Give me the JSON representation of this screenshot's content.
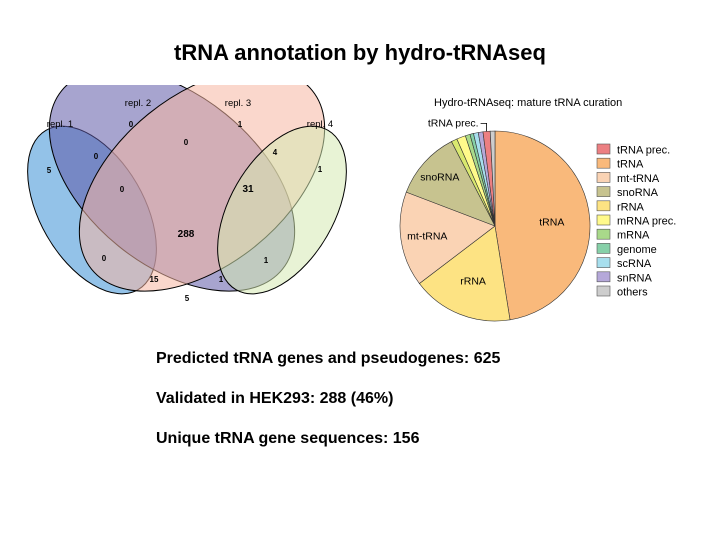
{
  "slide": {
    "title": "tRNA annotation by hydro-tRNAseq",
    "stats": [
      "Predicted tRNA genes and pseudogenes: 625",
      "Validated in HEK293: 288 (46%)",
      "Unique tRNA gene sequences: 156"
    ]
  },
  "chart_data": [
    {
      "type": "venn",
      "title": "",
      "sets": [
        {
          "name": "repl. 1",
          "color": "#3a8fd6"
        },
        {
          "name": "repl. 2",
          "color": "#5e5aa8"
        },
        {
          "name": "repl. 3",
          "color": "#f6b6a2"
        },
        {
          "name": "repl. 4",
          "color": "#d6e9b2"
        }
      ],
      "regions": [
        {
          "sets": [
            "repl. 1"
          ],
          "value": "5"
        },
        {
          "sets": [
            "repl. 2"
          ],
          "value": "0"
        },
        {
          "sets": [
            "repl. 3"
          ],
          "value": "1"
        },
        {
          "sets": [
            "repl. 4"
          ],
          "value": "1"
        },
        {
          "sets": [
            "repl. 1",
            "repl. 2"
          ],
          "value": "0"
        },
        {
          "sets": [
            "repl. 2",
            "repl. 3"
          ],
          "value": "0"
        },
        {
          "sets": [
            "repl. 3",
            "repl. 4"
          ],
          "value": "4"
        },
        {
          "sets": [
            "repl. 1",
            "repl. 2",
            "repl. 3"
          ],
          "value": "0"
        },
        {
          "sets": [
            "repl. 2",
            "repl. 3",
            "repl. 4"
          ],
          "value": "31"
        },
        {
          "sets": [
            "repl. 1",
            "repl. 2",
            "repl. 3",
            "repl. 4"
          ],
          "value": "288"
        },
        {
          "sets": [
            "repl. 1",
            "repl. 3"
          ],
          "value": "0"
        },
        {
          "sets": [
            "repl. 2",
            "repl. 4"
          ],
          "value": "1"
        },
        {
          "sets": [
            "repl. 1",
            "repl. 3",
            "repl. 4"
          ],
          "value": "15"
        },
        {
          "sets": [
            "repl. 1",
            "repl. 2",
            "repl. 4"
          ],
          "value": "1"
        },
        {
          "sets": [
            "repl. 1",
            "repl. 4"
          ],
          "value": "5"
        }
      ]
    },
    {
      "type": "pie",
      "title": "Hydro-tRNAseq: mature tRNA curation",
      "legend_position": "right",
      "slices": [
        {
          "label": "tRNA",
          "value": 47.0,
          "color": "#f9b97b"
        },
        {
          "label": "rRNA",
          "value": 17.0,
          "color": "#fde383"
        },
        {
          "label": "mt-tRNA",
          "value": 16.0,
          "color": "#fad3b4"
        },
        {
          "label": "snoRNA",
          "value": 11.5,
          "color": "#c7c38f"
        },
        {
          "label": "",
          "value": 1.0,
          "color": "#d9e86f"
        },
        {
          "label": "",
          "value": 1.5,
          "color": "#fffa8b"
        },
        {
          "label": "",
          "value": 0.8,
          "color": "#a9d98a"
        },
        {
          "label": "",
          "value": 0.6,
          "color": "#86d0a8"
        },
        {
          "label": "",
          "value": 0.8,
          "color": "#a7dfee"
        },
        {
          "label": "",
          "value": 0.8,
          "color": "#b5a8d9"
        },
        {
          "label": "tRNA prec.",
          "value": 1.2,
          "color": "#ec7f82"
        },
        {
          "label": "",
          "value": 0.8,
          "color": "#cdcdcd"
        }
      ],
      "legend": [
        {
          "label": "tRNA prec.",
          "color": "#ec7f82"
        },
        {
          "label": "tRNA",
          "color": "#f9b97b"
        },
        {
          "label": "mt-tRNA",
          "color": "#fad3b4"
        },
        {
          "label": "snoRNA",
          "color": "#c7c38f"
        },
        {
          "label": "rRNA",
          "color": "#fde383"
        },
        {
          "label": "mRNA prec.",
          "color": "#fffa8b"
        },
        {
          "label": "mRNA",
          "color": "#a9d98a"
        },
        {
          "label": "genome",
          "color": "#86d0a8"
        },
        {
          "label": "scRNA",
          "color": "#a7dfee"
        },
        {
          "label": "snRNA",
          "color": "#b5a8d9"
        },
        {
          "label": "others",
          "color": "#cdcdcd"
        }
      ]
    }
  ]
}
